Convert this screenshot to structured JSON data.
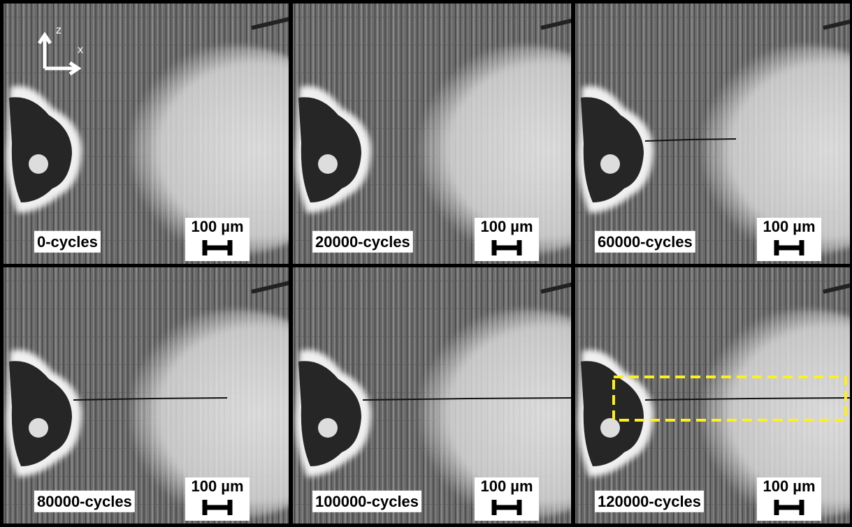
{
  "axes": {
    "z": "z",
    "x": "x"
  },
  "panels": [
    {
      "label": "0-cycles",
      "scale": "100 µm"
    },
    {
      "label": "20000-cycles",
      "scale": "100 µm"
    },
    {
      "label": "60000-cycles",
      "scale": "100 µm"
    },
    {
      "label": "80000-cycles",
      "scale": "100 µm"
    },
    {
      "label": "100000-cycles",
      "scale": "100 µm"
    },
    {
      "label": "120000-cycles",
      "scale": "100 µm"
    }
  ]
}
